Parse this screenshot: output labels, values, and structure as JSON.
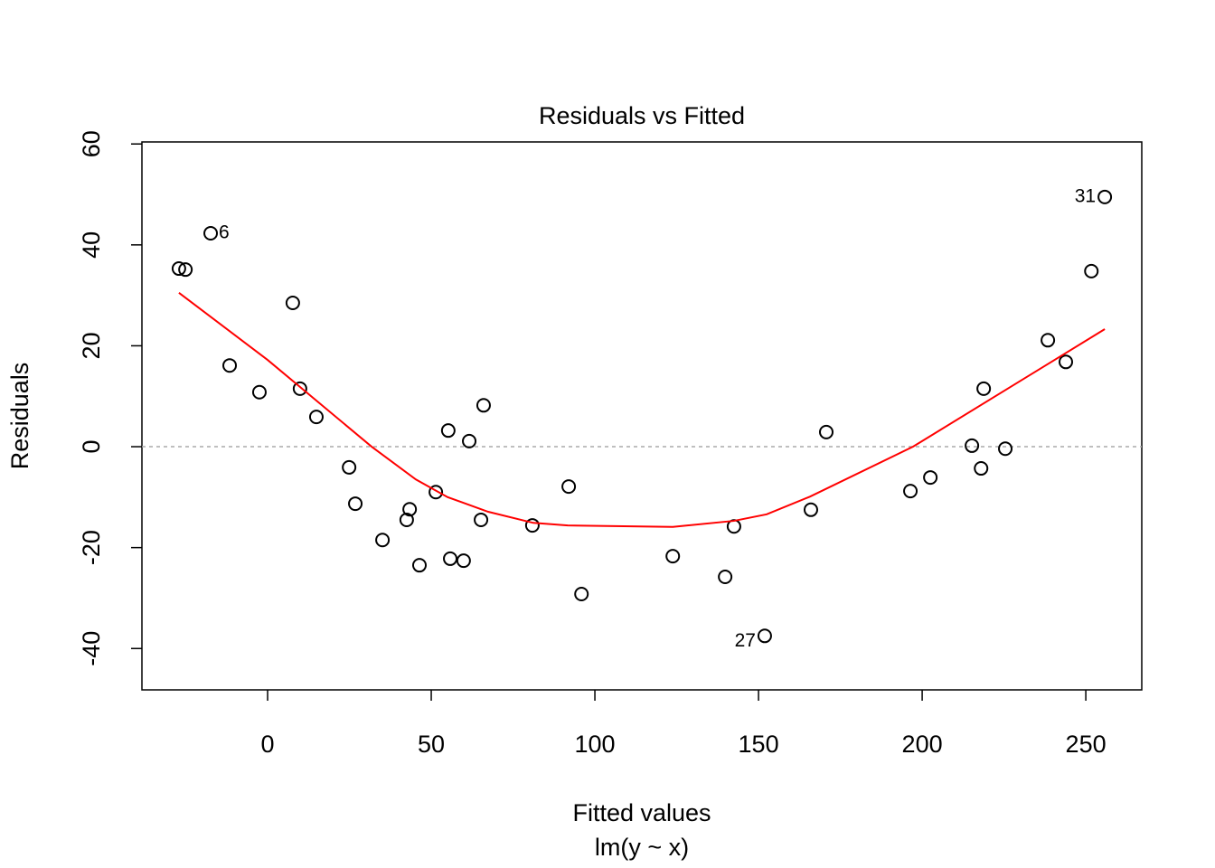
{
  "chart_data": {
    "type": "scatter",
    "title": "Residuals vs Fitted",
    "x_label": "Fitted values",
    "x_sublabel": "lm(y ~ x)",
    "y_label": "Residuals",
    "xlim": [
      -38.4,
      267.1
    ],
    "ylim": [
      -48.2,
      60.4
    ],
    "xticks": [
      0,
      50,
      100,
      150,
      200,
      250
    ],
    "yticks": [
      -40,
      -20,
      0,
      20,
      40,
      60
    ],
    "reference_line": 0,
    "color": "#000000",
    "x": [
      -27.1,
      -25.1,
      -17.4,
      -11.6,
      -2.5,
      7.7,
      9.9,
      14.9,
      24.9,
      26.8,
      35.1,
      42.5,
      43.4,
      46.4,
      51.4,
      55.2,
      55.8,
      59.9,
      61.6,
      65.2,
      66.0,
      80.9,
      92.0,
      95.9,
      123.8,
      139.8,
      142.5,
      151.9,
      166.0,
      170.7,
      196.4,
      202.5,
      215.2,
      218.0,
      218.8,
      225.4,
      238.4,
      243.9,
      251.7,
      255.8
    ],
    "values": [
      35.3,
      35.1,
      42.3,
      16.1,
      10.8,
      28.5,
      11.5,
      5.9,
      -4.1,
      -11.3,
      -18.5,
      -14.5,
      -12.4,
      -23.5,
      -9.0,
      3.2,
      -22.2,
      -22.6,
      1.1,
      -14.5,
      8.2,
      -15.6,
      -7.9,
      -29.2,
      -21.7,
      -25.8,
      -15.8,
      -37.5,
      -12.5,
      2.9,
      -8.8,
      -6.1,
      0.2,
      -4.3,
      11.5,
      -0.4,
      21.1,
      16.8,
      34.8,
      49.5
    ],
    "point_labels": [
      {
        "index": 2,
        "label": "6",
        "side": "right"
      },
      {
        "index": 27,
        "label": "27",
        "side": "left"
      },
      {
        "index": 39,
        "label": "31",
        "side": "left"
      }
    ],
    "smooth": {
      "color": "#ff0000",
      "x": [
        -27.1,
        0,
        31.8,
        45.3,
        55,
        67.4,
        81.2,
        91.7,
        123.8,
        142.5,
        152.5,
        165.7,
        197.2,
        255.8
      ],
      "values": [
        30.5,
        17.2,
        0,
        -6.5,
        -10,
        -12.9,
        -15.1,
        -15.6,
        -15.9,
        -14.7,
        -13.4,
        -9.9,
        0,
        23.3
      ]
    }
  }
}
